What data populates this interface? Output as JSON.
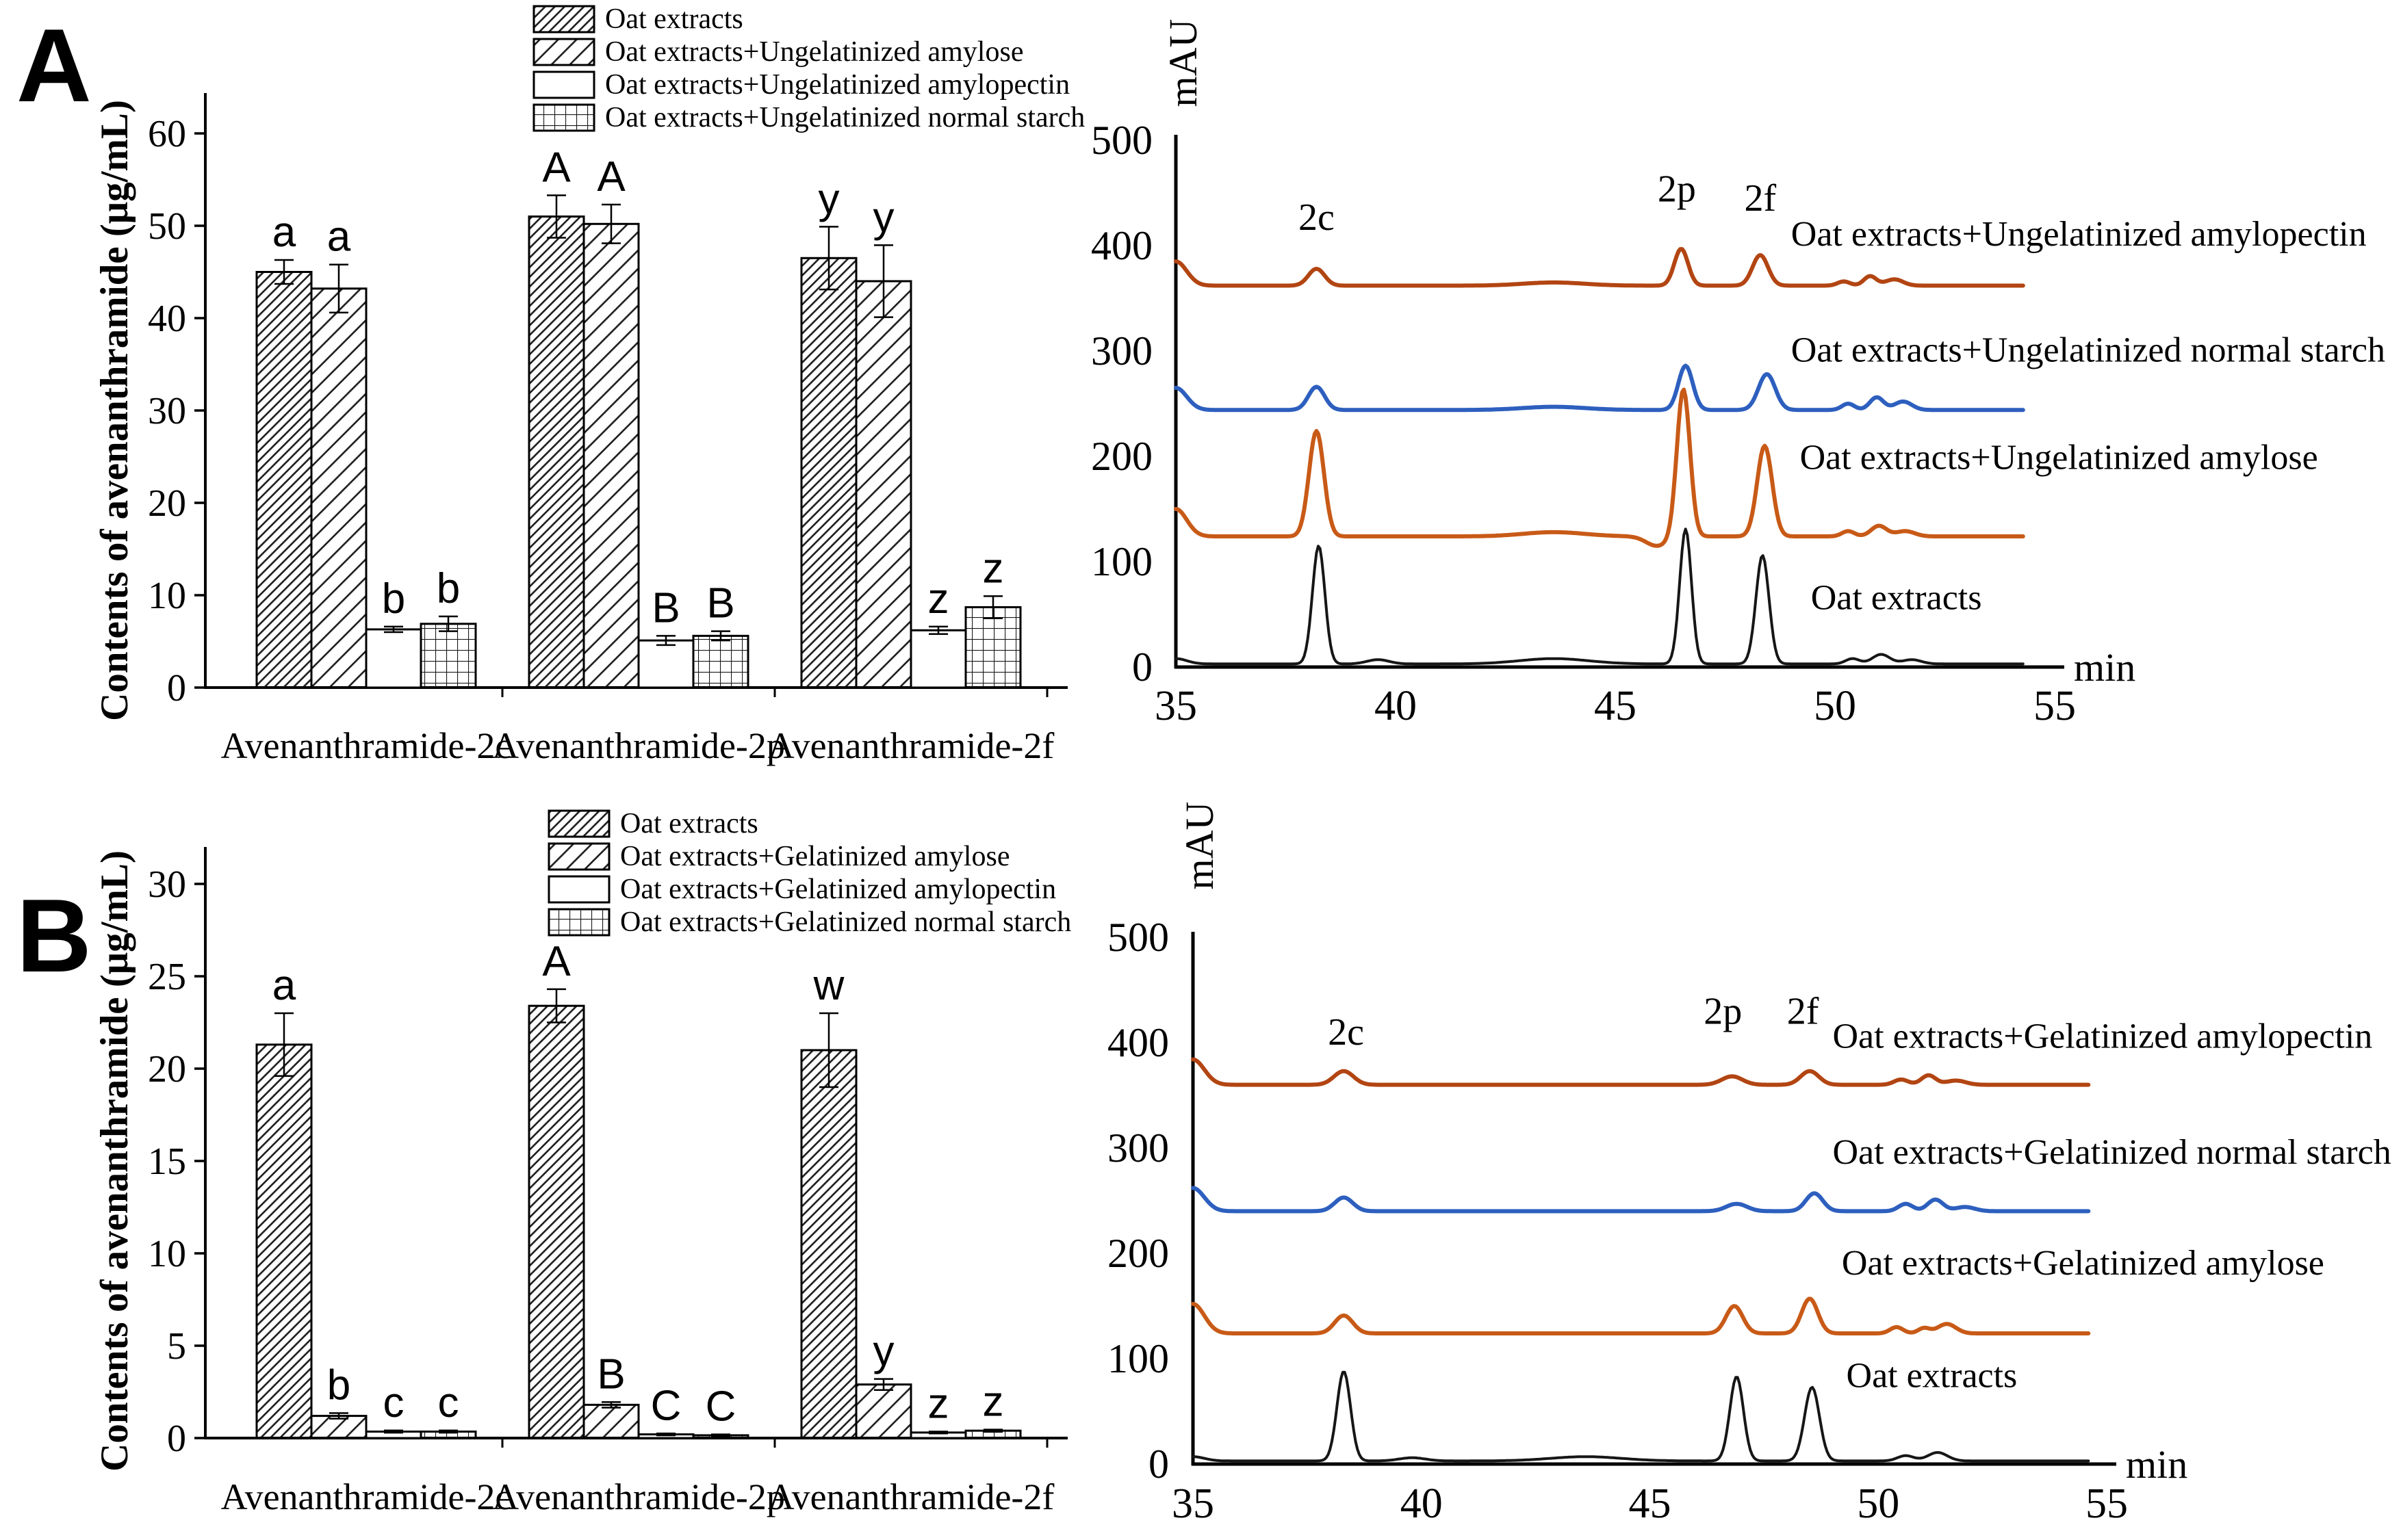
{
  "figure": {
    "panel_a_label": "A",
    "panel_b_label": "B",
    "background": "#ffffff"
  },
  "colors": {
    "axis": "#000000",
    "black_trace": "#161616",
    "blue_trace": "#2d5fbe",
    "orange_trace": "#c85a17",
    "dark_orange_trace": "#b24512",
    "hatch": "#1a1a1a"
  },
  "chart_data": [
    {
      "type": "bar",
      "panel": "A",
      "title": "",
      "xlabel": "",
      "ylabel": "Contents of avenanthramide (μg/mL)",
      "ylim": [
        0,
        65
      ],
      "yticks": [
        0,
        10,
        20,
        30,
        40,
        50,
        60
      ],
      "grid": false,
      "legend_position": "top-inside",
      "categories": [
        "Avenanthramide-2c",
        "Avenanthramide-2p",
        "Avenanthramide-2f"
      ],
      "series": [
        {
          "name": "Oat extracts",
          "pattern": "hatch-dense",
          "values": [
            45.0,
            51.0,
            46.5
          ],
          "errors": [
            1.3,
            2.3,
            3.4
          ],
          "letters": [
            "a",
            "A",
            "y"
          ]
        },
        {
          "name": "Oat extracts+Ungelatinized amylose",
          "pattern": "hatch-light",
          "values": [
            43.2,
            50.2,
            44.0
          ],
          "errors": [
            2.6,
            2.1,
            3.9
          ],
          "letters": [
            "a",
            "A",
            "y"
          ]
        },
        {
          "name": "Oat extracts+Ungelatinized amylopectin",
          "pattern": "plain",
          "values": [
            6.3,
            5.1,
            6.2
          ],
          "errors": [
            0.3,
            0.5,
            0.4
          ],
          "letters": [
            "b",
            "B",
            "z"
          ]
        },
        {
          "name": "Oat extracts+Ungelatinized normal starch",
          "pattern": "grid",
          "values": [
            6.9,
            5.6,
            8.7
          ],
          "errors": [
            0.8,
            0.5,
            1.2
          ],
          "letters": [
            "b",
            "B",
            "z"
          ]
        }
      ]
    },
    {
      "type": "line",
      "panel": "A",
      "title": "",
      "xlabel": "min",
      "ylabel": "mAU",
      "xlim": [
        35,
        55
      ],
      "xticks": [
        35,
        40,
        45,
        50,
        55
      ],
      "ylim": [
        0,
        500
      ],
      "yticks": [
        0,
        100,
        200,
        300,
        400,
        500
      ],
      "grid": false,
      "peak_labels": [
        {
          "text": "2c",
          "x": 38.2,
          "y": 415
        },
        {
          "text": "2p",
          "x": 46.4,
          "y": 442
        },
        {
          "text": "2f",
          "x": 48.3,
          "y": 433
        }
      ],
      "traces": [
        {
          "name": "Oat extracts+Ungelatinized amylopectin",
          "color": "#b24512",
          "width": 6,
          "baseline": 362,
          "start_spike": 23,
          "end": 54.3,
          "peaks": [
            [
              38.2,
              16,
              0.26
            ],
            [
              46.5,
              35,
              0.22
            ],
            [
              48.3,
              29,
              0.25
            ],
            [
              50.2,
              4,
              0.2
            ],
            [
              50.8,
              9,
              0.2
            ],
            [
              51.35,
              6,
              0.28
            ],
            [
              43.6,
              3,
              1.0
            ]
          ],
          "label_pos": {
            "x": 49.0,
            "y": 400
          }
        },
        {
          "name": "Oat extracts+Ungelatinized normal starch",
          "color": "#2d5fbe",
          "width": 6,
          "baseline": 244,
          "start_spike": 21,
          "end": 54.3,
          "peaks": [
            [
              38.2,
              22,
              0.26
            ],
            [
              46.6,
              42,
              0.23
            ],
            [
              48.45,
              34,
              0.27
            ],
            [
              50.3,
              6,
              0.2
            ],
            [
              50.95,
              12,
              0.22
            ],
            [
              51.55,
              8,
              0.28
            ],
            [
              43.6,
              3,
              1.0
            ]
          ],
          "label_pos": {
            "x": 49.0,
            "y": 290
          }
        },
        {
          "name": "Oat extracts+Ungelatinized amylose",
          "color": "#c85a17",
          "width": 6,
          "baseline": 124,
          "start_spike": 26,
          "end": 54.3,
          "peaks": [
            [
              38.2,
              100,
              0.24
            ],
            [
              45.95,
              -9,
              0.35
            ],
            [
              46.55,
              140,
              0.21
            ],
            [
              48.4,
              86,
              0.24
            ],
            [
              50.3,
              5,
              0.2
            ],
            [
              51.0,
              10,
              0.25
            ],
            [
              51.6,
              5,
              0.3
            ],
            [
              43.6,
              4,
              1.0
            ]
          ],
          "label_pos": {
            "x": 49.2,
            "y": 188
          }
        },
        {
          "name": "Oat extracts",
          "color": "#161616",
          "width": 4,
          "baseline": 3,
          "start_spike": 5,
          "end": 54.3,
          "peaks": [
            [
              38.25,
              112,
              0.2
            ],
            [
              46.6,
              128,
              0.19
            ],
            [
              48.35,
              103,
              0.21
            ],
            [
              39.6,
              4,
              0.35
            ],
            [
              43.6,
              5,
              1.1
            ],
            [
              50.4,
              5,
              0.22
            ],
            [
              51.05,
              9,
              0.28
            ],
            [
              51.75,
              4,
              0.3
            ]
          ],
          "label_pos": {
            "x": 49.45,
            "y": 55
          }
        }
      ]
    },
    {
      "type": "bar",
      "panel": "B",
      "title": "",
      "xlabel": "",
      "ylabel": "Contents of avenanthramide (μg/mL)",
      "ylim": [
        0,
        31.5
      ],
      "yticks": [
        0,
        5,
        10,
        15,
        20,
        25,
        30
      ],
      "grid": false,
      "legend_position": "top-inside",
      "categories": [
        "Avenanthramide-2c",
        "Avenanthramide-2p",
        "Avenanthramide-2f"
      ],
      "series": [
        {
          "name": "Oat extracts",
          "pattern": "hatch-dense",
          "values": [
            21.3,
            23.4,
            21.0
          ],
          "errors": [
            1.7,
            0.9,
            2.0
          ],
          "letters": [
            "a",
            "A",
            "w"
          ]
        },
        {
          "name": "Oat extracts+Gelatinized amylose",
          "pattern": "hatch-light",
          "values": [
            1.2,
            1.8,
            2.9
          ],
          "errors": [
            0.15,
            0.15,
            0.3
          ],
          "letters": [
            "b",
            "B",
            "y"
          ]
        },
        {
          "name": "Oat extracts+Gelatinized amylopectin",
          "pattern": "plain",
          "values": [
            0.35,
            0.2,
            0.3
          ],
          "errors": [
            0.06,
            0.05,
            0.05
          ],
          "letters": [
            "c",
            "C",
            "z"
          ]
        },
        {
          "name": "Oat extracts+Gelatinized normal starch",
          "pattern": "grid",
          "values": [
            0.35,
            0.15,
            0.4
          ],
          "errors": [
            0.06,
            0.05,
            0.06
          ],
          "letters": [
            "c",
            "C",
            "z"
          ]
        }
      ]
    },
    {
      "type": "line",
      "panel": "B",
      "title": "",
      "xlabel": "min",
      "ylabel": "mAU",
      "xlim": [
        35,
        55
      ],
      "xticks": [
        35,
        40,
        45,
        50,
        55
      ],
      "ylim": [
        0,
        500
      ],
      "yticks": [
        0,
        100,
        200,
        300,
        400,
        500
      ],
      "grid": false,
      "peak_labels": [
        {
          "text": "2c",
          "x": 38.35,
          "y": 398
        },
        {
          "text": "2p",
          "x": 46.6,
          "y": 418
        },
        {
          "text": "2f",
          "x": 48.35,
          "y": 418
        }
      ],
      "traces": [
        {
          "name": "Oat extracts+Gelatinized amylopectin",
          "color": "#b24512",
          "width": 6,
          "baseline": 360,
          "start_spike": 24,
          "end": 54.6,
          "peaks": [
            [
              38.3,
              13,
              0.3
            ],
            [
              46.8,
              8,
              0.32
            ],
            [
              48.5,
              13,
              0.28
            ],
            [
              50.5,
              5,
              0.22
            ],
            [
              51.1,
              9,
              0.22
            ],
            [
              51.7,
              4,
              0.3
            ]
          ],
          "label_pos": {
            "x": 49.0,
            "y": 395
          }
        },
        {
          "name": "Oat extracts+Gelatinized normal starch",
          "color": "#2d5fbe",
          "width": 6,
          "baseline": 240,
          "start_spike": 22,
          "end": 54.6,
          "peaks": [
            [
              38.3,
              13,
              0.28
            ],
            [
              46.9,
              7,
              0.32
            ],
            [
              48.6,
              17,
              0.26
            ],
            [
              50.6,
              7,
              0.22
            ],
            [
              51.25,
              11,
              0.24
            ],
            [
              51.9,
              4,
              0.3
            ]
          ],
          "label_pos": {
            "x": 49.0,
            "y": 285
          }
        },
        {
          "name": "Oat extracts+Gelatinized amylose",
          "color": "#c85a17",
          "width": 6,
          "baseline": 124,
          "start_spike": 28,
          "end": 54.6,
          "peaks": [
            [
              38.3,
              17,
              0.28
            ],
            [
              46.85,
              26,
              0.26
            ],
            [
              48.5,
              33,
              0.25
            ],
            [
              50.4,
              6,
              0.2
            ],
            [
              51.0,
              5,
              0.18
            ],
            [
              51.5,
              9,
              0.28
            ]
          ],
          "label_pos": {
            "x": 49.2,
            "y": 180
          }
        },
        {
          "name": "Oat extracts",
          "color": "#161616",
          "width": 4,
          "baseline": 3,
          "start_spike": 4,
          "end": 54.6,
          "peaks": [
            [
              38.3,
              85,
              0.21
            ],
            [
              46.9,
              80,
              0.21
            ],
            [
              48.55,
              70,
              0.23
            ],
            [
              39.8,
              3,
              0.4
            ],
            [
              43.6,
              4,
              1.1
            ],
            [
              50.6,
              5,
              0.25
            ],
            [
              51.3,
              8,
              0.3
            ]
          ],
          "label_pos": {
            "x": 49.3,
            "y": 73
          }
        }
      ]
    }
  ]
}
